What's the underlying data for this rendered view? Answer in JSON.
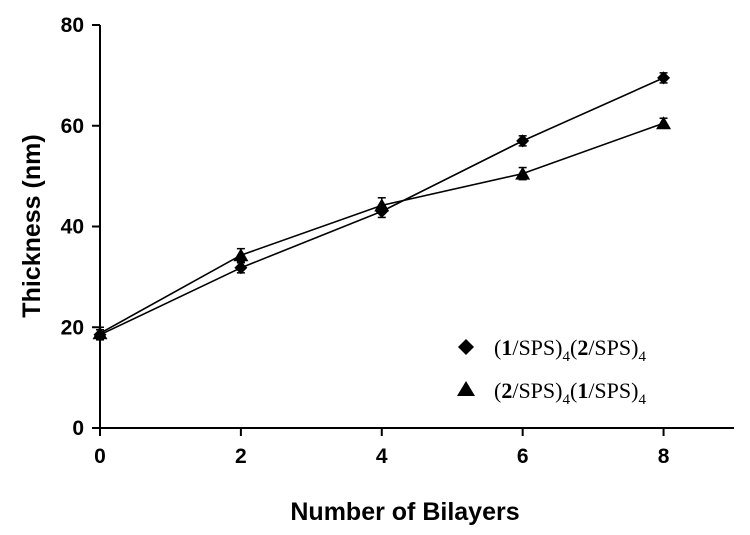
{
  "chart_data": {
    "type": "line",
    "xlabel": "Number of Bilayers",
    "ylabel": "Thickness (nm)",
    "xlim": [
      0,
      9
    ],
    "ylim": [
      0,
      80
    ],
    "xticks": [
      "0",
      "2",
      "4",
      "6",
      "8"
    ],
    "yticks": [
      "0",
      "20",
      "40",
      "60",
      "80"
    ],
    "legend_position": "lower-right",
    "series": [
      {
        "legend": {
          "p1": "(",
          "b1": "1",
          "p2": "/SPS)",
          "s1": "4",
          "p3": "(",
          "b2": "2",
          "p4": "/SPS)",
          "s2": "4"
        },
        "marker": "diamond",
        "x": [
          0,
          2,
          4,
          6,
          8
        ],
        "y": [
          18.5,
          31.8,
          43.0,
          57.0,
          69.5
        ],
        "err": [
          1.0,
          1.0,
          1.2,
          1.0,
          1.0
        ]
      },
      {
        "legend": {
          "p1": "(",
          "b1": "2",
          "p2": "/SPS)",
          "s1": "4",
          "p3": "(",
          "b2": "1",
          "p4": "/SPS)",
          "s2": "4"
        },
        "marker": "triangle",
        "x": [
          0,
          2,
          4,
          6,
          8
        ],
        "y": [
          18.8,
          34.3,
          44.2,
          50.5,
          60.5
        ],
        "err": [
          1.2,
          1.3,
          1.5,
          1.2,
          1.0
        ]
      }
    ]
  }
}
